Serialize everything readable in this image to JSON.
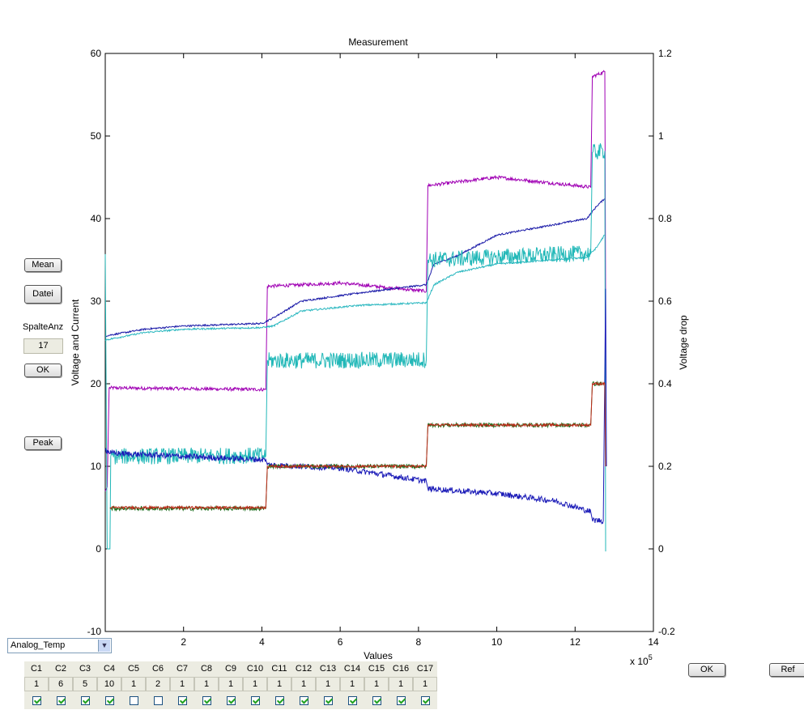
{
  "chart_data": {
    "type": "line",
    "title": "Measurement",
    "xlabel": "Values",
    "x_exponent_label": "x 10",
    "x_exponent": "5",
    "ylabel_left": "Voltage and Current",
    "ylabel_right": "Voltage drop",
    "xlim": [
      0,
      14
    ],
    "ylim_left": [
      -10,
      60
    ],
    "ylim_right": [
      -0.2,
      1.2
    ],
    "x_ticks": [
      "2",
      "4",
      "6",
      "8",
      "10",
      "12",
      "14"
    ],
    "y_left_ticks": [
      "-10",
      "0",
      "10",
      "20",
      "30",
      "40",
      "50",
      "60"
    ],
    "y_right_ticks": [
      "-0.2",
      "0",
      "0.2",
      "0.4",
      "0.6",
      "0.8",
      "1",
      "1.2"
    ],
    "grid": false,
    "series": [
      {
        "color": "#a000b4",
        "noise": 0.2,
        "points": [
          [
            0,
            7
          ],
          [
            0.05,
            7.5
          ],
          [
            0.1,
            19.5
          ],
          [
            4.1,
            19.3
          ],
          [
            4.14,
            31.8
          ],
          [
            6,
            32.2
          ],
          [
            8.2,
            31.2
          ],
          [
            8.24,
            44
          ],
          [
            10,
            45
          ],
          [
            12.4,
            43.8
          ],
          [
            12.44,
            57.2
          ],
          [
            12.76,
            57.8
          ],
          [
            12.78,
            30
          ]
        ]
      },
      {
        "color": "#1a1aa8",
        "noise": 0.1,
        "points": [
          [
            0,
            25.8
          ],
          [
            1,
            26.6
          ],
          [
            2,
            27
          ],
          [
            4,
            27.3
          ],
          [
            4.3,
            28
          ],
          [
            5,
            30
          ],
          [
            6.5,
            31
          ],
          [
            8.2,
            32
          ],
          [
            8.4,
            34.5
          ],
          [
            9,
            35.5
          ],
          [
            10,
            38
          ],
          [
            12.3,
            40
          ],
          [
            12.55,
            41.5
          ],
          [
            12.75,
            42.4
          ]
        ]
      },
      {
        "color": "#2cb8c0",
        "noise": 0.1,
        "points": [
          [
            0,
            25.3
          ],
          [
            1,
            26.2
          ],
          [
            2,
            26.6
          ],
          [
            4,
            26.8
          ],
          [
            4.3,
            27
          ],
          [
            5,
            28.8
          ],
          [
            6.5,
            29.5
          ],
          [
            8.2,
            29.8
          ],
          [
            8.4,
            32
          ],
          [
            9,
            33.5
          ],
          [
            10,
            34.5
          ],
          [
            12.3,
            35.3
          ],
          [
            12.55,
            36.5
          ],
          [
            12.75,
            38
          ]
        ]
      },
      {
        "color": "#22b8b8",
        "noise": 1.0,
        "points": [
          [
            0,
            35.7
          ],
          [
            0.05,
            0
          ],
          [
            0.12,
            0
          ],
          [
            0.14,
            11.2
          ],
          [
            4.1,
            11.3
          ],
          [
            4.14,
            22.8
          ],
          [
            8.2,
            22.9
          ],
          [
            8.24,
            35
          ],
          [
            12.4,
            35.8
          ],
          [
            12.44,
            48
          ],
          [
            12.76,
            48.2
          ],
          [
            12.78,
            -0.3
          ]
        ]
      },
      {
        "color": "#1c1cb8",
        "noise": 0.35,
        "points": [
          [
            0,
            12
          ],
          [
            0.15,
            11.6
          ],
          [
            2,
            11.2
          ],
          [
            4.1,
            10.8
          ],
          [
            4.14,
            10.2
          ],
          [
            5,
            10
          ],
          [
            6,
            9.8
          ],
          [
            8.2,
            8.2
          ],
          [
            8.24,
            7.3
          ],
          [
            10,
            6.7
          ],
          [
            11.5,
            5.8
          ],
          [
            12.4,
            4.5
          ],
          [
            12.44,
            3.5
          ],
          [
            12.72,
            3.4
          ],
          [
            12.78,
            31.5
          ],
          [
            12.8,
            10
          ]
        ]
      },
      {
        "color": "#1e6e1e",
        "noise": 0.25,
        "points": [
          [
            0.12,
            4.9
          ],
          [
            4.1,
            4.9
          ],
          [
            4.14,
            10
          ],
          [
            8.2,
            10
          ],
          [
            8.24,
            15
          ],
          [
            12.4,
            15
          ],
          [
            12.44,
            20
          ],
          [
            12.76,
            20
          ]
        ]
      },
      {
        "color": "#c02a1a",
        "noise": 0.15,
        "points": [
          [
            0.12,
            5
          ],
          [
            4.1,
            5
          ],
          [
            4.14,
            10
          ],
          [
            8.2,
            10
          ],
          [
            8.24,
            15
          ],
          [
            12.4,
            15
          ],
          [
            12.44,
            20
          ],
          [
            12.76,
            20
          ],
          [
            12.78,
            10
          ]
        ]
      }
    ]
  },
  "controls": {
    "mean_label": "Mean",
    "datei_label": "Datei",
    "spalteanz_label": "SpalteAnz",
    "spalteanz_value": "17",
    "ok_left_label": "OK",
    "peak_label": "Peak",
    "ok_right_label": "OK",
    "ref_label": "Ref",
    "dropdown_value": "Analog_Temp"
  },
  "columns": {
    "headers": [
      "C1",
      "C2",
      "C3",
      "C4",
      "C5",
      "C6",
      "C7",
      "C8",
      "C9",
      "C10",
      "C11",
      "C12",
      "C13",
      "C14",
      "C15",
      "C16",
      "C17"
    ],
    "values": [
      "1",
      "6",
      "5",
      "10",
      "1",
      "2",
      "1",
      "1",
      "1",
      "1",
      "1",
      "1",
      "1",
      "1",
      "1",
      "1",
      "1"
    ],
    "checked": [
      true,
      true,
      true,
      true,
      false,
      false,
      true,
      true,
      true,
      true,
      true,
      true,
      true,
      true,
      true,
      true,
      true
    ]
  }
}
